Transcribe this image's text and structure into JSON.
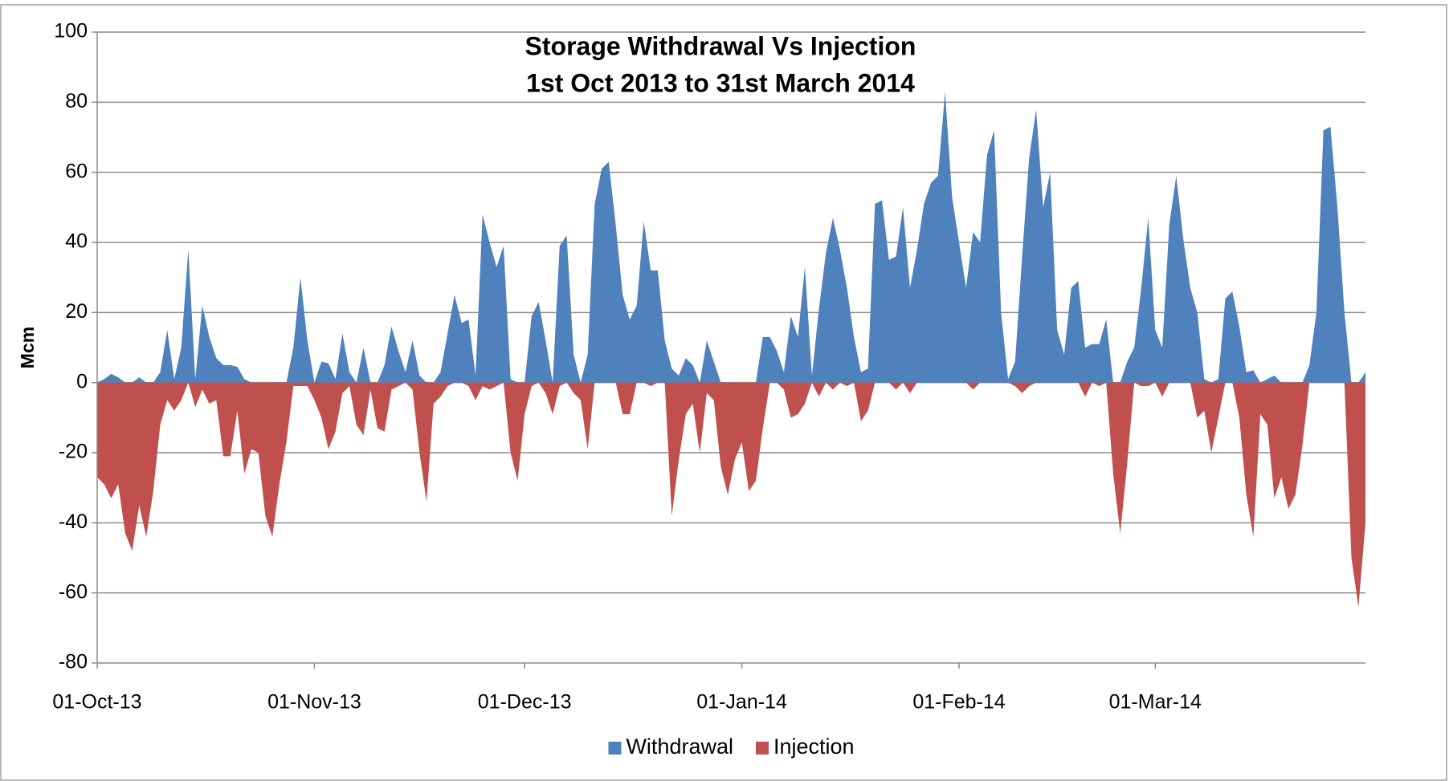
{
  "chart_data": {
    "type": "area",
    "title": "Storage Withdrawal Vs Injection",
    "subtitle": "1st Oct 2013 to 31st March 2014",
    "y_label": "Mcm",
    "x": [
      "2013-10-01",
      "2013-10-02",
      "2013-10-03",
      "2013-10-04",
      "2013-10-05",
      "2013-10-06",
      "2013-10-07",
      "2013-10-08",
      "2013-10-09",
      "2013-10-10",
      "2013-10-11",
      "2013-10-12",
      "2013-10-13",
      "2013-10-14",
      "2013-10-15",
      "2013-10-16",
      "2013-10-17",
      "2013-10-18",
      "2013-10-19",
      "2013-10-20",
      "2013-10-21",
      "2013-10-22",
      "2013-10-23",
      "2013-10-24",
      "2013-10-25",
      "2013-10-26",
      "2013-10-27",
      "2013-10-28",
      "2013-10-29",
      "2013-10-30",
      "2013-10-31",
      "2013-11-01",
      "2013-11-02",
      "2013-11-03",
      "2013-11-04",
      "2013-11-05",
      "2013-11-06",
      "2013-11-07",
      "2013-11-08",
      "2013-11-09",
      "2013-11-10",
      "2013-11-11",
      "2013-11-12",
      "2013-11-13",
      "2013-11-14",
      "2013-11-15",
      "2013-11-16",
      "2013-11-17",
      "2013-11-18",
      "2013-11-19",
      "2013-11-20",
      "2013-11-21",
      "2013-11-22",
      "2013-11-23",
      "2013-11-24",
      "2013-11-25",
      "2013-11-26",
      "2013-11-27",
      "2013-11-28",
      "2013-11-29",
      "2013-11-30",
      "2013-12-01",
      "2013-12-02",
      "2013-12-03",
      "2013-12-04",
      "2013-12-05",
      "2013-12-06",
      "2013-12-07",
      "2013-12-08",
      "2013-12-09",
      "2013-12-10",
      "2013-12-11",
      "2013-12-12",
      "2013-12-13",
      "2013-12-14",
      "2013-12-15",
      "2013-12-16",
      "2013-12-17",
      "2013-12-18",
      "2013-12-19",
      "2013-12-20",
      "2013-12-21",
      "2013-12-22",
      "2013-12-23",
      "2013-12-24",
      "2013-12-25",
      "2013-12-26",
      "2013-12-27",
      "2013-12-28",
      "2013-12-29",
      "2013-12-30",
      "2013-12-31",
      "2014-01-01",
      "2014-01-02",
      "2014-01-03",
      "2014-01-04",
      "2014-01-05",
      "2014-01-06",
      "2014-01-07",
      "2014-01-08",
      "2014-01-09",
      "2014-01-10",
      "2014-01-11",
      "2014-01-12",
      "2014-01-13",
      "2014-01-14",
      "2014-01-15",
      "2014-01-16",
      "2014-01-17",
      "2014-01-18",
      "2014-01-19",
      "2014-01-20",
      "2014-01-21",
      "2014-01-22",
      "2014-01-23",
      "2014-01-24",
      "2014-01-25",
      "2014-01-26",
      "2014-01-27",
      "2014-01-28",
      "2014-01-29",
      "2014-01-30",
      "2014-01-31",
      "2014-02-01",
      "2014-02-02",
      "2014-02-03",
      "2014-02-04",
      "2014-02-05",
      "2014-02-06",
      "2014-02-07",
      "2014-02-08",
      "2014-02-09",
      "2014-02-10",
      "2014-02-11",
      "2014-02-12",
      "2014-02-13",
      "2014-02-14",
      "2014-02-15",
      "2014-02-16",
      "2014-02-17",
      "2014-02-18",
      "2014-02-19",
      "2014-02-20",
      "2014-02-21",
      "2014-02-22",
      "2014-02-23",
      "2014-02-24",
      "2014-02-25",
      "2014-02-26",
      "2014-02-27",
      "2014-02-28",
      "2014-03-01",
      "2014-03-02",
      "2014-03-03",
      "2014-03-04",
      "2014-03-05",
      "2014-03-06",
      "2014-03-07",
      "2014-03-08",
      "2014-03-09",
      "2014-03-10",
      "2014-03-11",
      "2014-03-12",
      "2014-03-13",
      "2014-03-14",
      "2014-03-15",
      "2014-03-16",
      "2014-03-17",
      "2014-03-18",
      "2014-03-19",
      "2014-03-20",
      "2014-03-21",
      "2014-03-22",
      "2014-03-23",
      "2014-03-24",
      "2014-03-25",
      "2014-03-26",
      "2014-03-27",
      "2014-03-28",
      "2014-03-29",
      "2014-03-30",
      "2014-03-31"
    ],
    "series": [
      {
        "name": "Withdrawal",
        "color": "#4f81bd",
        "values": [
          0,
          1,
          2.5,
          1.5,
          0,
          0,
          1.5,
          0,
          0,
          3,
          15,
          1,
          10,
          38,
          1,
          22,
          13,
          7,
          5,
          5,
          4.5,
          1,
          0,
          0,
          0,
          0,
          0,
          0,
          10,
          30,
          12,
          0,
          6,
          5.5,
          1,
          14,
          3,
          0,
          10,
          0,
          0,
          5,
          16,
          9,
          3,
          12,
          2,
          0,
          0,
          3,
          14,
          25,
          17,
          18,
          2,
          48,
          40,
          33,
          39,
          1,
          0,
          0,
          19,
          23,
          12,
          0,
          39,
          42,
          8,
          0,
          8,
          51,
          61,
          63,
          45,
          25,
          18,
          22,
          46,
          32,
          32,
          12,
          4,
          2,
          7,
          5,
          0,
          12,
          6,
          0,
          0,
          0,
          0,
          0,
          0,
          13,
          13,
          9,
          3,
          19,
          13,
          33,
          2,
          21,
          37,
          47,
          38,
          27,
          13,
          3,
          4,
          51,
          52,
          35,
          36,
          50,
          27,
          38,
          51,
          57,
          59,
          83,
          53,
          40,
          27,
          43,
          40,
          65,
          72,
          20,
          1,
          6,
          36,
          64,
          78,
          50,
          60,
          15,
          8,
          27,
          29,
          10,
          11,
          11,
          18,
          0,
          0,
          6,
          10,
          27,
          47,
          15,
          10,
          45,
          59,
          41,
          27,
          20,
          1,
          0,
          1,
          24,
          26,
          16,
          3,
          3.5,
          0,
          1,
          2,
          0,
          0,
          0,
          0,
          5,
          20,
          72,
          73,
          50,
          20,
          0,
          0,
          3
        ]
      },
      {
        "name": "Injection",
        "color": "#c0504d",
        "values": [
          -27,
          -29,
          -33,
          -29,
          -43,
          -48,
          -35,
          -44,
          -31,
          -12,
          -5,
          -8,
          -5,
          0,
          -7,
          -2,
          -6,
          -5,
          -21,
          -21,
          -8,
          -26,
          -19,
          -20,
          -38,
          -44,
          -29,
          -17,
          -1,
          -1,
          -1,
          -5,
          -10,
          -19,
          -14,
          -3,
          -1,
          -12,
          -15,
          -2,
          -13,
          -14,
          -2,
          -1,
          0,
          -2,
          -20,
          -34,
          -6,
          -4,
          -1,
          0,
          0,
          -1,
          -5,
          -1,
          -2,
          -1,
          0,
          -20,
          -28,
          -9,
          -1,
          0,
          -3,
          -9,
          -1,
          0,
          -3,
          -5,
          -19,
          0,
          0,
          0,
          0,
          -9,
          -9,
          0,
          0,
          -1,
          0,
          0,
          -38,
          -22,
          -9,
          -6,
          -20,
          -3,
          -5,
          -24,
          -32,
          -22,
          -17,
          -31,
          -28,
          -13,
          0,
          0,
          -2,
          -10,
          -9,
          -6,
          0,
          -4,
          0,
          -2,
          0,
          -1,
          0,
          -11,
          -8,
          0,
          0,
          0,
          -2,
          0,
          -3,
          0,
          0,
          0,
          0,
          0,
          0,
          0,
          0,
          -2,
          0,
          0,
          0,
          0,
          0,
          -1,
          -3,
          -1,
          0,
          0,
          0,
          0,
          0,
          0,
          0,
          -4,
          0,
          -1,
          0,
          -26,
          -43,
          -23,
          0,
          -1,
          -1,
          0,
          -4,
          0,
          0,
          0,
          0,
          -10,
          -8,
          -20,
          -10,
          0,
          0,
          -10,
          -32,
          -44,
          -9,
          -12,
          -33,
          -27,
          -36,
          -32,
          -18,
          0,
          0,
          0,
          0,
          0,
          0,
          -50,
          -64,
          -40
        ]
      }
    ],
    "xlim": [
      "2013-10-01",
      "2014-03-31"
    ],
    "xticks": [
      {
        "value": "2013-10-01",
        "label": "01-Oct-13"
      },
      {
        "value": "2013-11-01",
        "label": "01-Nov-13"
      },
      {
        "value": "2013-12-01",
        "label": "01-Dec-13"
      },
      {
        "value": "2014-01-01",
        "label": "01-Jan-14"
      },
      {
        "value": "2014-02-01",
        "label": "01-Feb-14"
      },
      {
        "value": "2014-03-01",
        "label": "01-Mar-14"
      }
    ],
    "ylim": [
      -80,
      100
    ],
    "yticks": [
      -80,
      -60,
      -40,
      -20,
      0,
      20,
      40,
      60,
      80,
      100
    ],
    "grid": true,
    "legend": "bottom"
  }
}
